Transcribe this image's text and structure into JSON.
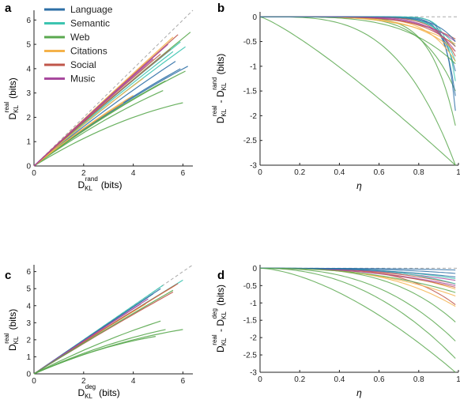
{
  "colors": {
    "Language": "#2d6fa6",
    "Semantic": "#3cc4b0",
    "Web": "#5aa84f",
    "Citations": "#f4b24a",
    "Social": "#c0564a",
    "Music": "#a8499e",
    "reference": "#aaaaaa"
  },
  "legend": [
    "Language",
    "Semantic",
    "Web",
    "Citations",
    "Social",
    "Music"
  ],
  "chart_data": [
    {
      "panel": "a",
      "type": "line",
      "xlabel": {
        "main": "D",
        "sub": "KL",
        "sup": "rand",
        "unit": "(bits)"
      },
      "ylabel": {
        "main": "D",
        "sub": "KL",
        "sup": "real",
        "unit": "(bits)"
      },
      "xlim": [
        0,
        6.4
      ],
      "ylim": [
        0,
        6.4
      ],
      "xticks": [
        "0",
        "2",
        "4",
        "6"
      ],
      "yticks": [
        "0",
        "1",
        "2",
        "3",
        "4",
        "5",
        "6"
      ],
      "reference_line": "y = x",
      "series": [
        {
          "group": "Language",
          "x": [
            0,
            6.2
          ],
          "y": [
            0,
            4.1
          ]
        },
        {
          "group": "Language",
          "x": [
            0,
            5.7
          ],
          "y": [
            0,
            4.3
          ]
        },
        {
          "group": "Language",
          "x": [
            0,
            5.9
          ],
          "y": [
            0,
            4.0
          ]
        },
        {
          "group": "Semantic",
          "x": [
            0,
            5.9
          ],
          "y": [
            0,
            5.1
          ]
        },
        {
          "group": "Semantic",
          "x": [
            0,
            6.1
          ],
          "y": [
            0,
            4.9
          ]
        },
        {
          "group": "Semantic",
          "x": [
            0,
            5.6
          ],
          "y": [
            0,
            4.7
          ]
        },
        {
          "group": "Web",
          "x": [
            0,
            6.3
          ],
          "y": [
            0,
            5.5
          ]
        },
        {
          "group": "Web",
          "x": [
            0,
            6.1
          ],
          "y": [
            0,
            3.9
          ]
        },
        {
          "group": "Web",
          "x": [
            0,
            5.3
          ],
          "y": [
            0,
            3.5
          ]
        },
        {
          "group": "Web",
          "x": [
            0,
            5.2
          ],
          "y": [
            0,
            3.1
          ]
        },
        {
          "group": "Web",
          "x": [
            0,
            6.0
          ],
          "y": [
            0,
            2.6
          ]
        },
        {
          "group": "Citations",
          "x": [
            0,
            4.4
          ],
          "y": [
            0,
            3.6
          ]
        },
        {
          "group": "Citations",
          "x": [
            0,
            5.6
          ],
          "y": [
            0,
            5.3
          ]
        },
        {
          "group": "Citations",
          "x": [
            0,
            4.0
          ],
          "y": [
            0,
            2.9
          ]
        },
        {
          "group": "Citations",
          "x": [
            0,
            3.6
          ],
          "y": [
            0,
            2.6
          ]
        },
        {
          "group": "Social",
          "x": [
            0,
            5.8
          ],
          "y": [
            0,
            5.4
          ]
        },
        {
          "group": "Social",
          "x": [
            0,
            5.5
          ],
          "y": [
            0,
            4.8
          ]
        },
        {
          "group": "Social",
          "x": [
            0,
            5.1
          ],
          "y": [
            0,
            4.6
          ]
        },
        {
          "group": "Music",
          "x": [
            0,
            5.4
          ],
          "y": [
            0,
            5.0
          ]
        },
        {
          "group": "Music",
          "x": [
            0,
            4.8
          ],
          "y": [
            0,
            4.4
          ]
        }
      ]
    },
    {
      "panel": "b",
      "type": "line",
      "xlabel": {
        "main": "η"
      },
      "ylabel": {
        "part1": "D",
        "sub1": "KL",
        "sup1": "real",
        "minus": "-",
        "part2": "D",
        "sub2": "KL",
        "sup2": "rand",
        "unit": "(bits)"
      },
      "xlim": [
        0,
        1
      ],
      "ylim": [
        -3,
        0.1
      ],
      "xticks": [
        "0",
        "0.2",
        "0.4",
        "0.6",
        "0.8",
        "1"
      ],
      "yticks": [
        "0",
        "-0.5",
        "-1",
        "-1.5",
        "-2",
        "-2.5",
        "-3"
      ],
      "reference_line": "y = 0",
      "series": [
        {
          "group": "Web",
          "end": -3.0,
          "p": 1.2
        },
        {
          "group": "Web",
          "end": -3.0,
          "p": 3.5
        },
        {
          "group": "Web",
          "end": -2.2,
          "p": 8
        },
        {
          "group": "Web",
          "end": -1.5,
          "p": 6
        },
        {
          "group": "Language",
          "end": -1.9,
          "p": 22
        },
        {
          "group": "Language",
          "end": -1.6,
          "p": 18
        },
        {
          "group": "Language",
          "end": -1.1,
          "p": 14
        },
        {
          "group": "Semantic",
          "end": -1.3,
          "p": 20
        },
        {
          "group": "Semantic",
          "end": -0.9,
          "p": 12
        },
        {
          "group": "Semantic",
          "end": -0.6,
          "p": 9
        },
        {
          "group": "Citations",
          "end": -0.9,
          "p": 7
        },
        {
          "group": "Citations",
          "end": -0.7,
          "p": 5
        },
        {
          "group": "Citations",
          "end": -0.55,
          "p": 4
        },
        {
          "group": "Social",
          "end": -0.8,
          "p": 10
        },
        {
          "group": "Social",
          "end": -0.6,
          "p": 6
        },
        {
          "group": "Social",
          "end": -0.45,
          "p": 5
        },
        {
          "group": "Music",
          "end": -0.7,
          "p": 8
        },
        {
          "group": "Music",
          "end": -0.5,
          "p": 6
        },
        {
          "group": "Web",
          "end": -0.95,
          "p": 4
        },
        {
          "group": "Language",
          "end": -0.5,
          "p": 10
        }
      ]
    },
    {
      "panel": "c",
      "type": "line",
      "xlabel": {
        "main": "D",
        "sub": "KL",
        "sup": "deg",
        "unit": "(bits)"
      },
      "ylabel": {
        "main": "D",
        "sub": "KL",
        "sup": "real",
        "unit": "(bits)"
      },
      "xlim": [
        0,
        6.4
      ],
      "ylim": [
        0,
        6.4
      ],
      "xticks": [
        "0",
        "2",
        "4",
        "6"
      ],
      "yticks": [
        "0",
        "1",
        "2",
        "3",
        "4",
        "5",
        "6"
      ],
      "reference_line": "y = x",
      "series": [
        {
          "group": "Semantic",
          "x": [
            0,
            6.0
          ],
          "y": [
            0,
            5.5
          ]
        },
        {
          "group": "Semantic",
          "x": [
            0,
            5.2
          ],
          "y": [
            0,
            5.2
          ]
        },
        {
          "group": "Language",
          "x": [
            0,
            5.1
          ],
          "y": [
            0,
            5.0
          ]
        },
        {
          "group": "Language",
          "x": [
            0,
            4.8
          ],
          "y": [
            0,
            4.7
          ]
        },
        {
          "group": "Citations",
          "x": [
            0,
            5.7
          ],
          "y": [
            0,
            5.2
          ]
        },
        {
          "group": "Citations",
          "x": [
            0,
            4.5
          ],
          "y": [
            0,
            4.1
          ]
        },
        {
          "group": "Citations",
          "x": [
            0,
            4.0
          ],
          "y": [
            0,
            3.7
          ]
        },
        {
          "group": "Social",
          "x": [
            0,
            5.8
          ],
          "y": [
            0,
            5.3
          ]
        },
        {
          "group": "Social",
          "x": [
            0,
            5.6
          ],
          "y": [
            0,
            4.8
          ]
        },
        {
          "group": "Music",
          "x": [
            0,
            4.6
          ],
          "y": [
            0,
            4.4
          ]
        },
        {
          "group": "Music",
          "x": [
            0,
            4.3
          ],
          "y": [
            0,
            4.1
          ]
        },
        {
          "group": "Web",
          "x": [
            0,
            5.6
          ],
          "y": [
            0,
            4.9
          ]
        },
        {
          "group": "Web",
          "x": [
            0,
            5.1
          ],
          "y": [
            0,
            3.1
          ]
        },
        {
          "group": "Web",
          "x": [
            0,
            5.3
          ],
          "y": [
            0,
            2.6
          ]
        },
        {
          "group": "Web",
          "x": [
            0,
            6.0
          ],
          "y": [
            0,
            2.6
          ]
        },
        {
          "group": "Web",
          "x": [
            0,
            4.9
          ],
          "y": [
            0,
            2.2
          ]
        }
      ]
    },
    {
      "panel": "d",
      "type": "line",
      "xlabel": {
        "main": "η"
      },
      "ylabel": {
        "part1": "D",
        "sub1": "KL",
        "sup1": "real",
        "minus": "-",
        "part2": "D",
        "sub2": "KL",
        "sup2": "deg",
        "unit": "(bits)"
      },
      "xlim": [
        0,
        1
      ],
      "ylim": [
        -3,
        0.1
      ],
      "xticks": [
        "0",
        "0.2",
        "0.4",
        "0.6",
        "0.8",
        "1"
      ],
      "yticks": [
        "0",
        "-0.5",
        "-1",
        "-1.5",
        "-2",
        "-2.5",
        "-3"
      ],
      "reference_line": "y = 0",
      "series": [
        {
          "group": "Web",
          "end": -3.0,
          "p": 1.6
        },
        {
          "group": "Web",
          "end": -2.6,
          "p": 2.2
        },
        {
          "group": "Web",
          "end": -2.1,
          "p": 2.6
        },
        {
          "group": "Web",
          "end": -1.55,
          "p": 3.2
        },
        {
          "group": "Social",
          "end": -1.05,
          "p": 4
        },
        {
          "group": "Citations",
          "end": -1.1,
          "p": 3
        },
        {
          "group": "Citations",
          "end": -0.8,
          "p": 2.5
        },
        {
          "group": "Citations",
          "end": -0.6,
          "p": 3
        },
        {
          "group": "Social",
          "end": -0.55,
          "p": 2.5
        },
        {
          "group": "Social",
          "end": -0.45,
          "p": 2.8
        },
        {
          "group": "Music",
          "end": -0.5,
          "p": 2.4
        },
        {
          "group": "Music",
          "end": -0.35,
          "p": 2.6
        },
        {
          "group": "Semantic",
          "end": -0.45,
          "p": 3.5
        },
        {
          "group": "Semantic",
          "end": -0.3,
          "p": 3
        },
        {
          "group": "Language",
          "end": -0.25,
          "p": 2.5
        },
        {
          "group": "Language",
          "end": -0.15,
          "p": 3
        },
        {
          "group": "Language",
          "end": -0.05,
          "p": 3
        },
        {
          "group": "Web",
          "end": -0.7,
          "p": 2.4
        }
      ]
    }
  ]
}
